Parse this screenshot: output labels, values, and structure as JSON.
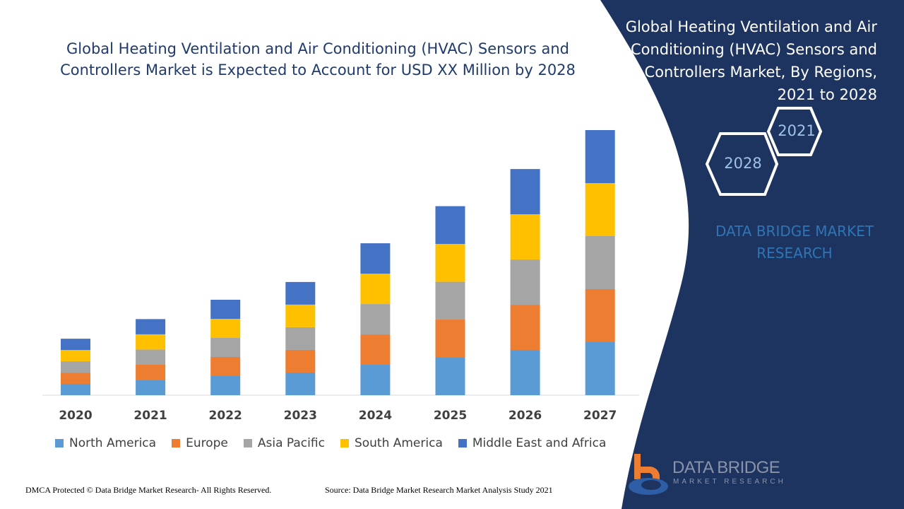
{
  "title": "Global Heating Ventilation and Air Conditioning (HVAC) Sensors and Controllers Market is Expected to Account for USD XX Million by 2028",
  "side_panel": {
    "title": "Global Heating Ventilation and Air Conditioning (HVAC) Sensors and Controllers Market, By Regions, 2021 to 2028",
    "hex_badges": [
      "2021",
      "2028"
    ],
    "brand_text": "DATA BRIDGE MARKET RESEARCH",
    "logo_text": "DATA BRIDGE",
    "logo_subtext": "MARKET RESEARCH",
    "background_color": "#1d3461"
  },
  "footer": {
    "left": "DMCA Protected © Data Bridge Market Research- All Rights Reserved.",
    "source": "Source: Data Bridge Market Research Market Analysis Study 2021"
  },
  "chart_data": {
    "type": "bar",
    "stacked": true,
    "title": "",
    "xlabel": "",
    "ylabel": "",
    "grid": false,
    "legend_position": "bottom",
    "categories": [
      "2020",
      "2021",
      "2022",
      "2023",
      "2024",
      "2025",
      "2026",
      "2027"
    ],
    "series": [
      {
        "name": "North America",
        "color": "#5b9bd5",
        "values": [
          21.3,
          28.7,
          36,
          42.7,
          57.3,
          71.3,
          85.3,
          100
        ]
      },
      {
        "name": "Europe",
        "color": "#ed7d31",
        "values": [
          21.3,
          28.7,
          36,
          42.7,
          57.3,
          71.3,
          85.3,
          100
        ]
      },
      {
        "name": "Asia Pacific",
        "color": "#a5a5a5",
        "values": [
          21.3,
          28.7,
          36,
          42.7,
          57.3,
          71.3,
          85.3,
          100
        ]
      },
      {
        "name": "South America",
        "color": "#ffc000",
        "values": [
          21.3,
          28.7,
          36,
          42.7,
          57.3,
          71.3,
          85.3,
          100
        ]
      },
      {
        "name": "Middle East and Africa",
        "color": "#4472c4",
        "values": [
          21.3,
          28.7,
          36,
          42.7,
          57.3,
          71.3,
          85.3,
          100
        ]
      }
    ]
  }
}
